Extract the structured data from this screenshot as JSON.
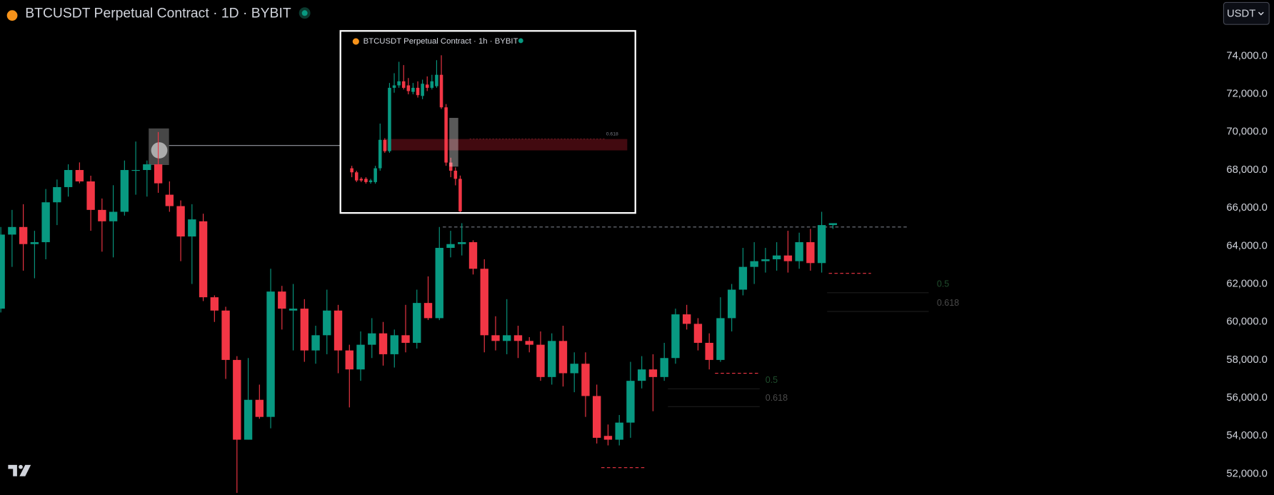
{
  "toolbar": {
    "currency": "USDT"
  },
  "chart_data": [
    {
      "type": "candlestick",
      "title": "BTCUSDT Perpetual Contract · 1D · BYBIT",
      "up_color": "#089981",
      "down_color": "#f23645",
      "grid": false,
      "open": [
        60700,
        64600,
        65000,
        64100,
        64200,
        66300,
        67100,
        68000,
        67400,
        65900,
        65300,
        65800,
        68000,
        68000,
        68300,
        66700,
        66100,
        64500,
        65300,
        61300,
        60600,
        58000,
        53800,
        55900,
        55000,
        61600,
        60600,
        60700,
        58500,
        59300,
        60600,
        58500,
        57500,
        58800,
        59400,
        58300,
        59300,
        58900,
        61000,
        60200,
        63900,
        64100,
        64200,
        62800,
        59300,
        59000,
        59300,
        59000,
        58800,
        57100,
        59000,
        57300,
        57800,
        56100,
        54000,
        53800,
        54700,
        56900,
        57500,
        57100,
        58100,
        60400,
        59900,
        58900,
        58000,
        60200,
        61700,
        62900,
        63200,
        63300,
        63500,
        63200,
        64200,
        63100,
        65100
      ],
      "high": [
        65000,
        65900,
        66200,
        64800,
        67000,
        67500,
        68300,
        68400,
        67700,
        66500,
        67200,
        68500,
        69500,
        68500,
        70000,
        67400,
        66400,
        66200,
        65700,
        61400,
        60800,
        58200,
        58100,
        56700,
        62800,
        61900,
        62000,
        61200,
        59800,
        61700,
        60900,
        58800,
        59500,
        60200,
        60000,
        59600,
        60900,
        61700,
        62400,
        65000,
        64800,
        65200,
        64300,
        63300,
        60300,
        61200,
        59800,
        59200,
        59500,
        59400,
        59800,
        58400,
        58400,
        56700,
        54600,
        55100,
        57900,
        58200,
        58300,
        58900,
        60700,
        60900,
        60200,
        59400,
        61300,
        62000,
        63900,
        64200,
        63900,
        64200,
        64800,
        64700,
        64900,
        65800,
        65200
      ],
      "low": [
        60500,
        62900,
        62700,
        62300,
        63300,
        65100,
        66600,
        67300,
        64800,
        63700,
        63400,
        65600,
        66700,
        66600,
        66800,
        65800,
        63200,
        62000,
        61100,
        60000,
        57000,
        51000,
        53800,
        54900,
        54400,
        59600,
        58500,
        57900,
        57800,
        58300,
        57300,
        55500,
        56900,
        58100,
        57700,
        57600,
        58400,
        58600,
        60100,
        60100,
        63400,
        63500,
        62500,
        58400,
        58500,
        58300,
        58100,
        58400,
        56900,
        56700,
        56600,
        56300,
        55000,
        53600,
        53500,
        53500,
        53900,
        56500,
        55300,
        56900,
        57800,
        59600,
        58500,
        57500,
        57900,
        59500,
        61400,
        62000,
        62600,
        62700,
        62600,
        62800,
        62700,
        62600,
        64900
      ],
      "close": [
        64600,
        65000,
        64100,
        64200,
        66300,
        67100,
        68000,
        67400,
        65900,
        65300,
        65800,
        68000,
        68000,
        68300,
        67300,
        66100,
        64500,
        65400,
        61300,
        60600,
        58000,
        53800,
        55900,
        55000,
        61600,
        60700,
        60700,
        58500,
        59300,
        60600,
        58500,
        57500,
        58800,
        59400,
        58300,
        59300,
        58900,
        61000,
        60200,
        63900,
        64100,
        64200,
        62800,
        59300,
        59000,
        59300,
        59000,
        58800,
        57100,
        59000,
        57300,
        57800,
        56100,
        53900,
        53800,
        54700,
        56900,
        57500,
        57100,
        58100,
        60400,
        59900,
        58900,
        58000,
        60200,
        61700,
        62900,
        63200,
        63300,
        63500,
        63200,
        64200,
        63100,
        65100,
        65200
      ],
      "ylim": [
        50890,
        76950
      ],
      "yticks": [
        {
          "value": 52000,
          "label": "52,000.0"
        },
        {
          "value": 54000,
          "label": "54,000.0"
        },
        {
          "value": 56000,
          "label": "56,000.0"
        },
        {
          "value": 58000,
          "label": "58,000.0"
        },
        {
          "value": 60000,
          "label": "60,000.0"
        },
        {
          "value": 62000,
          "label": "62,000.0"
        },
        {
          "value": 64000,
          "label": "64,000.0"
        },
        {
          "value": 66000,
          "label": "66,000.0"
        },
        {
          "value": 68000,
          "label": "68,000.0"
        },
        {
          "value": 70000,
          "label": "70,000.0"
        },
        {
          "value": 72000,
          "label": "72,000.0"
        },
        {
          "value": 74000,
          "label": "74,000.0"
        }
      ],
      "levels": [
        {
          "label": "0.5",
          "value": 61540,
          "color": "#1f4d2c"
        },
        {
          "label": "0.618",
          "value": 60550,
          "color": "#4a4a4a"
        },
        {
          "label": "0.5",
          "value": 56480,
          "color": "#1f4d2c"
        },
        {
          "label": "0.618",
          "value": 55540,
          "color": "#4a4a4a"
        }
      ],
      "dashed_levels": [
        {
          "value": 65000,
          "color": "#787b86"
        },
        {
          "value": 62560,
          "color": "#f23645"
        },
        {
          "value": 57300,
          "color": "#f23645"
        },
        {
          "value": 52330,
          "color": "#f23645"
        }
      ]
    },
    {
      "type": "candlestick",
      "title": "BTCUSDT Perpetual Contract · 1h · BYBIT",
      "up_color": "#089981",
      "down_color": "#f23645",
      "open": [
        67650,
        67400,
        67000,
        67000,
        66800,
        66800,
        67650,
        69400,
        68700,
        72600,
        72750,
        73000,
        72750,
        72350,
        72600,
        72100,
        72800,
        72600,
        72700,
        73400,
        71400,
        68000,
        67500,
        67000
      ],
      "high": [
        67800,
        67500,
        67100,
        67100,
        67000,
        67800,
        70400,
        69500,
        72900,
        73500,
        74200,
        74000,
        73200,
        72900,
        73000,
        73100,
        73300,
        73400,
        74300,
        74600,
        71600,
        68300,
        67700,
        67200
      ],
      "low": [
        67100,
        66800,
        66800,
        66700,
        66700,
        66700,
        67500,
        68600,
        68600,
        72300,
        72600,
        72500,
        72200,
        72200,
        72000,
        71900,
        72400,
        72500,
        72600,
        71300,
        67800,
        67100,
        66600,
        64800
      ],
      "close": [
        67400,
        66900,
        66900,
        66800,
        66900,
        67650,
        69400,
        68700,
        72600,
        72750,
        73000,
        72600,
        72400,
        72600,
        72150,
        72850,
        72600,
        73000,
        73400,
        71400,
        68000,
        67500,
        67000,
        65000
      ],
      "ylim": [
        64900,
        74750
      ],
      "zone": {
        "label": "0.618",
        "from": 68750,
        "to": 69450
      }
    }
  ]
}
